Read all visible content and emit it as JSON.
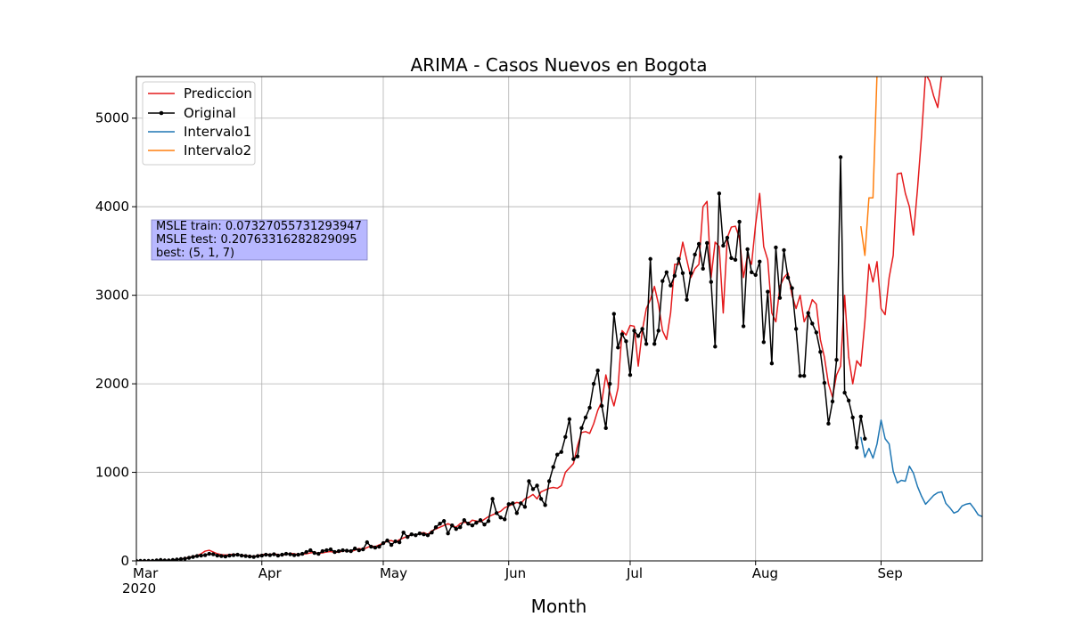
{
  "chart_data": {
    "type": "line",
    "title": "ARIMA - Casos Nuevos en Bogota",
    "xlabel": "Month",
    "ylabel": "",
    "x_start_date": "2020-03-01",
    "x_end_date": "2020-09-26",
    "ylim": [
      0,
      5470
    ],
    "yticks": [
      0,
      1000,
      2000,
      3000,
      4000,
      5000
    ],
    "xticks": [
      {
        "date": "2020-03-01",
        "label": "Mar",
        "sublabel": "2020"
      },
      {
        "date": "2020-04-01",
        "label": "Apr",
        "sublabel": ""
      },
      {
        "date": "2020-05-01",
        "label": "May",
        "sublabel": ""
      },
      {
        "date": "2020-06-01",
        "label": "Jun",
        "sublabel": ""
      },
      {
        "date": "2020-07-01",
        "label": "Jul",
        "sublabel": ""
      },
      {
        "date": "2020-08-01",
        "label": "Aug",
        "sublabel": ""
      },
      {
        "date": "2020-09-01",
        "label": "Sep",
        "sublabel": ""
      }
    ],
    "grid": true,
    "legend_position": "top-left",
    "annotation": [
      "MSLE train: 0.07327055731293947",
      "MSLE test: 0.20763316282829095",
      "best: (5, 1, 7)"
    ],
    "series": [
      {
        "name": "Prediccion",
        "color": "#e41a1c",
        "marker": false,
        "start_date": "2020-03-01",
        "values": [
          0,
          0,
          0,
          0,
          0,
          5,
          10,
          5,
          5,
          10,
          15,
          20,
          30,
          40,
          50,
          60,
          80,
          110,
          120,
          100,
          80,
          70,
          65,
          70,
          75,
          70,
          65,
          60,
          55,
          50,
          60,
          70,
          75,
          70,
          80,
          70,
          65,
          75,
          85,
          80,
          70,
          75,
          80,
          90,
          95,
          85,
          90,
          100,
          105,
          95,
          100,
          110,
          115,
          105,
          120,
          140,
          130,
          150,
          170,
          160,
          180,
          200,
          220,
          230,
          210,
          240,
          260,
          280,
          300,
          290,
          310,
          320,
          300,
          340,
          360,
          380,
          400,
          420,
          400,
          380,
          420,
          440,
          420,
          460,
          450,
          440,
          470,
          500,
          520,
          540,
          560,
          600,
          620,
          640,
          660,
          650,
          700,
          720,
          750,
          700,
          780,
          800,
          820,
          830,
          820,
          850,
          1000,
          1050,
          1100,
          1300,
          1450,
          1460,
          1440,
          1550,
          1700,
          1800,
          2100,
          1900,
          1750,
          1950,
          2600,
          2550,
          2660,
          2650,
          2200,
          2600,
          2850,
          2950,
          3100,
          2900,
          2600,
          2500,
          2800,
          3350,
          3350,
          3600,
          3400,
          3200,
          3300,
          3350,
          4000,
          4060,
          3200,
          3600,
          3550,
          2800,
          3650,
          3770,
          3780,
          3650,
          3200,
          3450,
          3350,
          3800,
          4150,
          3550,
          3400,
          2800,
          2700,
          3100,
          3200,
          3250,
          3000,
          2850,
          3000,
          2700,
          2800,
          2950,
          2900,
          2500,
          2300,
          2000,
          1850,
          2100,
          2200,
          3000,
          2300,
          2000,
          2260,
          2200,
          2700,
          3350,
          3150,
          3380,
          2850,
          2780,
          3200,
          3450,
          4370,
          4380,
          4150,
          4000,
          3680,
          4200,
          4800,
          5500,
          5420,
          5250,
          5120,
          5500
        ]
      },
      {
        "name": "Original",
        "color": "#000000",
        "marker": true,
        "start_date": "2020-03-01",
        "values": [
          0,
          0,
          0,
          0,
          0,
          5,
          10,
          5,
          5,
          10,
          15,
          20,
          25,
          35,
          45,
          55,
          60,
          65,
          80,
          75,
          60,
          55,
          50,
          60,
          65,
          70,
          60,
          55,
          50,
          45,
          55,
          60,
          70,
          65,
          75,
          60,
          70,
          80,
          75,
          65,
          70,
          80,
          100,
          120,
          90,
          80,
          110,
          120,
          130,
          100,
          110,
          120,
          115,
          110,
          140,
          120,
          130,
          210,
          160,
          150,
          160,
          200,
          230,
          180,
          220,
          210,
          320,
          270,
          300,
          290,
          310,
          300,
          290,
          320,
          380,
          420,
          450,
          310,
          400,
          360,
          380,
          460,
          420,
          400,
          430,
          460,
          410,
          450,
          700,
          540,
          490,
          470,
          640,
          650,
          540,
          650,
          610,
          900,
          810,
          850,
          700,
          630,
          900,
          1060,
          1200,
          1230,
          1400,
          1600,
          1150,
          1180,
          1500,
          1620,
          1730,
          2000,
          2150,
          1750,
          1500,
          2000,
          2790,
          2410,
          2560,
          2480,
          2100,
          2600,
          2540,
          2620,
          2450,
          3410,
          2450,
          2600,
          3160,
          3260,
          3110,
          3220,
          3410,
          3250,
          2950,
          3250,
          3460,
          3580,
          3300,
          3590,
          3150,
          2420,
          4150,
          3560,
          3650,
          3420,
          3400,
          3830,
          2650,
          3520,
          3260,
          3230,
          3380,
          2470,
          3040,
          2230,
          3540,
          2970,
          3510,
          3200,
          3080,
          2620,
          2090,
          2090,
          2800,
          2680,
          2580,
          2360,
          2010,
          1550,
          1800,
          2270,
          4560,
          1900,
          1810,
          1620,
          1280,
          1630,
          1380
        ]
      },
      {
        "name": "Intervalo1",
        "color": "#1f77b4",
        "marker": false,
        "start_date": "2020-08-27",
        "values": [
          1400,
          1170,
          1270,
          1160,
          1320,
          1590,
          1380,
          1320,
          1010,
          880,
          910,
          900,
          1070,
          990,
          840,
          730,
          640,
          690,
          740,
          770,
          780,
          650,
          600,
          540,
          560,
          620,
          640,
          650,
          590,
          520,
          500
        ]
      },
      {
        "name": "Intervalo2",
        "color": "#ff7f0e",
        "marker": false,
        "start_date": "2020-08-27",
        "values": [
          3780,
          3450,
          4100,
          4100,
          5500
        ]
      }
    ]
  }
}
